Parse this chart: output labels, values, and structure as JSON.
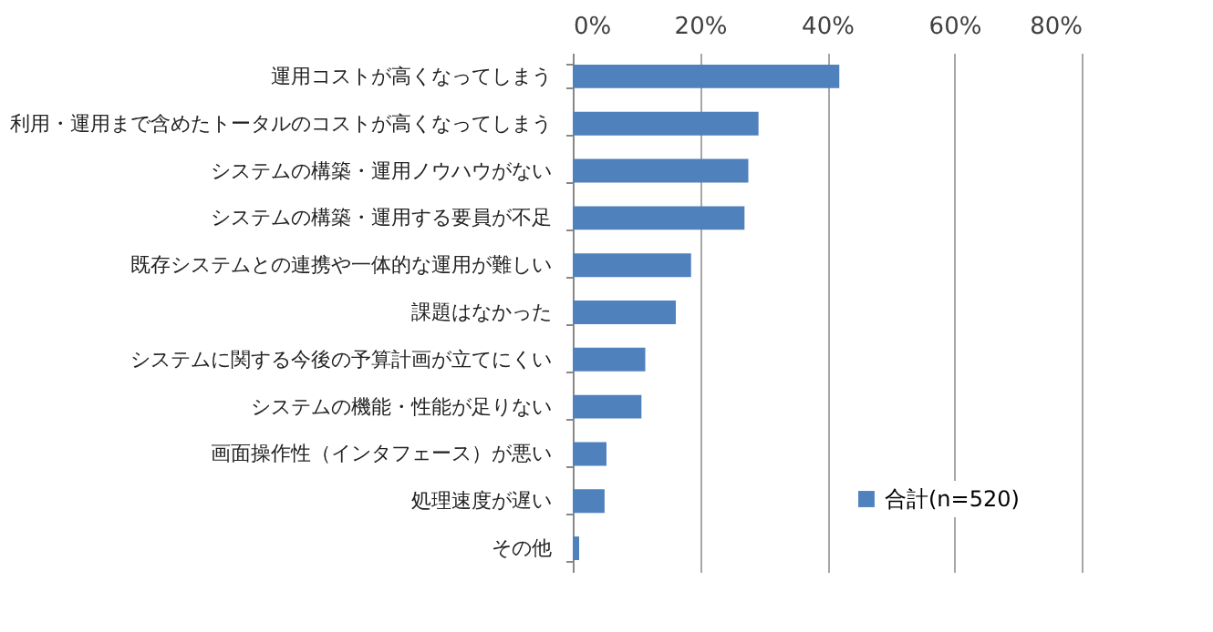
{
  "chart_data": {
    "type": "bar",
    "orientation": "horizontal",
    "categories": [
      "運用コストが高くなってしまう",
      "利用・運用まで含めたトータルのコストが高くなってしまう",
      "システムの構築・運用ノウハウがない",
      "システムの構築・運用する要員が不足",
      "既存システムとの連携や一体的な運用が難しい",
      "課題はなかった",
      "システムに関する今後の予算計画が立てにくい",
      "システムの機能・性能が足りない",
      "画面操作性（インタフェース）が悪い",
      "処理速度が遅い",
      "その他"
    ],
    "series": [
      {
        "name": "合計(n=520)",
        "color": "#4f81bd",
        "values": [
          41.9,
          29.2,
          27.6,
          27.0,
          18.6,
          16.2,
          11.4,
          10.8,
          5.3,
          5.0,
          1.0
        ]
      }
    ],
    "xlim": [
      0,
      80
    ],
    "xticks": [
      {
        "value": 0,
        "label": "0%"
      },
      {
        "value": 20,
        "label": "20%"
      },
      {
        "value": 40,
        "label": "40%"
      },
      {
        "value": 60,
        "label": "60%"
      },
      {
        "value": 80,
        "label": "80%"
      }
    ],
    "grid": "x",
    "legend": "bottom right"
  }
}
